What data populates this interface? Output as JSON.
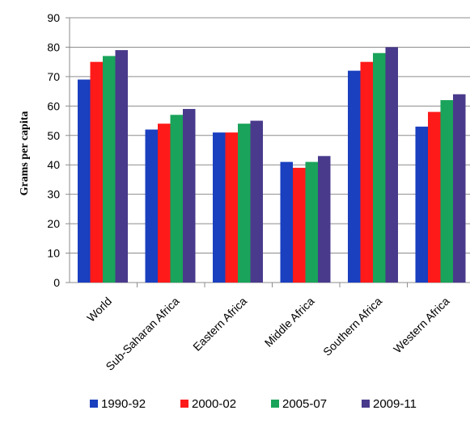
{
  "chart_data": {
    "type": "bar",
    "title": "",
    "xlabel": "",
    "ylabel": "Grams per capita",
    "ylim": [
      0,
      90
    ],
    "yticks": [
      0,
      10,
      20,
      30,
      40,
      50,
      60,
      70,
      80,
      90
    ],
    "grid": true,
    "legend_position": "bottom",
    "categories": [
      "World",
      "Sub-Saharan Africa",
      "Eastern Africa",
      "Middle Africa",
      "Southern Africa",
      "Western Africa"
    ],
    "series": [
      {
        "name": "1990-92",
        "color": "#1a3fbf",
        "values": [
          69,
          52,
          51,
          41,
          72,
          53
        ]
      },
      {
        "name": "2000-02",
        "color": "#ff1a1a",
        "values": [
          75,
          54,
          51,
          39,
          75,
          58
        ]
      },
      {
        "name": "2005-07",
        "color": "#1aa35a",
        "values": [
          77,
          57,
          54,
          41,
          78,
          62
        ]
      },
      {
        "name": "2009-11",
        "color": "#4a3a8c",
        "values": [
          79,
          59,
          55,
          43,
          80,
          64
        ]
      }
    ]
  }
}
